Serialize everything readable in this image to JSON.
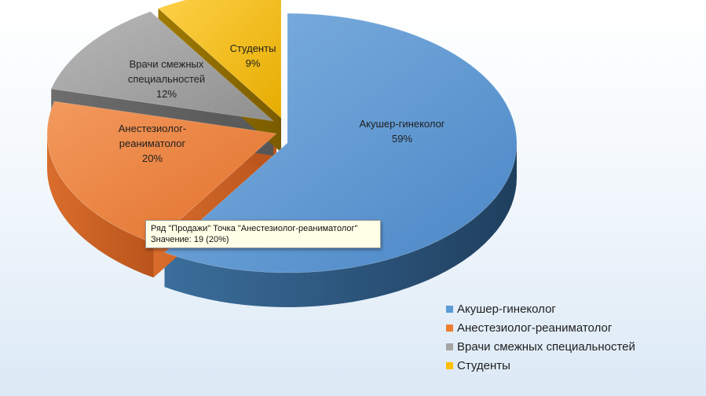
{
  "chart_data": {
    "type": "pie",
    "categories": [
      "Акушер-гинеколог",
      "Анестезиолог-реаниматолог",
      "Врачи смежных специальностей",
      "Студенты"
    ],
    "values": [
      59,
      20,
      12,
      9
    ],
    "data_labels": [
      [
        "Акушер-гинеколог",
        "59%"
      ],
      [
        "Анестезиолог-",
        "реаниматолог",
        "20%"
      ],
      [
        "Врачи смежных",
        "специальностей",
        "12%"
      ],
      [
        "Студенты",
        "9%"
      ]
    ],
    "colors": [
      "#5b9bd5",
      "#ed7d31",
      "#a5a5a5",
      "#ffc000"
    ],
    "legend_position": "bottom-right",
    "three_d": true
  },
  "tooltip": {
    "line1": "Ряд \"Продажи\" Точка \"Анестезиолог-реаниматолог\"",
    "line2": "Значение: 19 (20%)"
  }
}
